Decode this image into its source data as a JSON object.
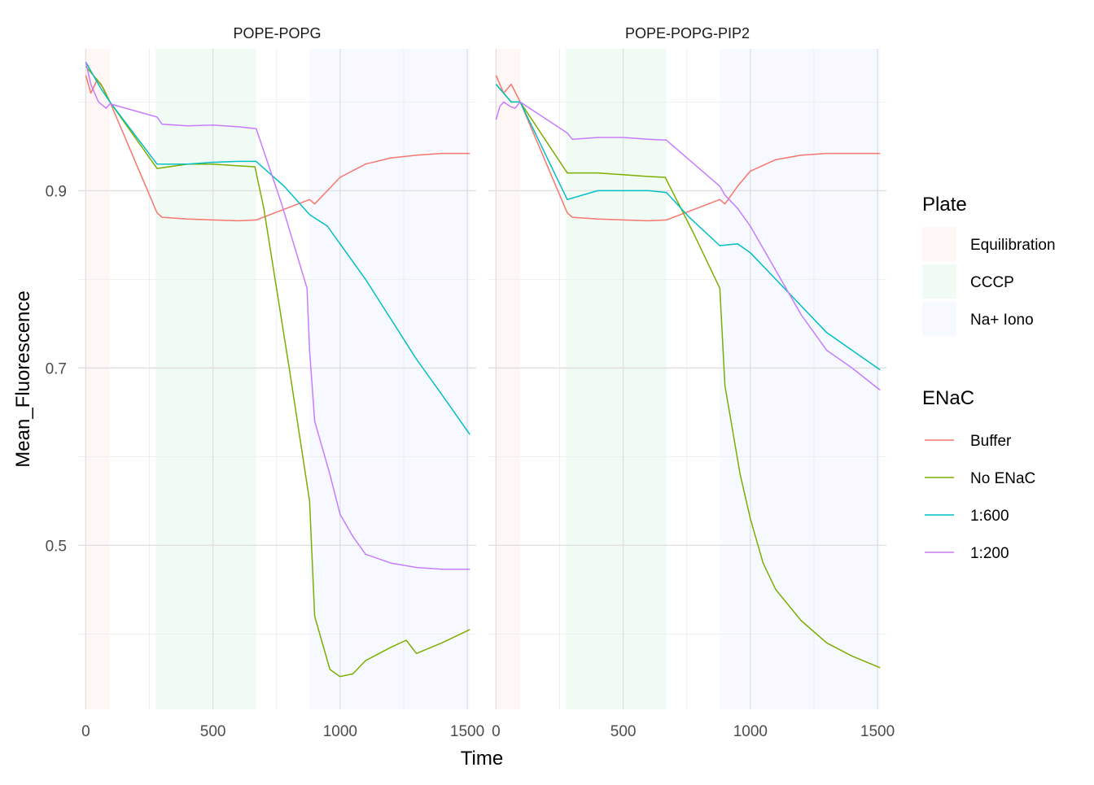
{
  "chart_data": {
    "type": "line",
    "xlabel": "Time",
    "ylabel": "Mean_Fluorescence",
    "xlim": [
      -30,
      1535
    ],
    "ylim": [
      0.315,
      1.06
    ],
    "x_ticks": [
      0,
      500,
      1000,
      1500
    ],
    "y_ticks": [
      0.5,
      0.7,
      0.9
    ],
    "x_tick_labels": [
      "0",
      "500",
      "1000",
      "1500"
    ],
    "y_tick_labels": [
      "0.5",
      "0.7",
      "0.9"
    ],
    "grid": true,
    "facets": [
      "POPE-POPG",
      "POPE-POPG-PIP2"
    ],
    "legend_position": "right",
    "plate_legend": {
      "title": "Plate",
      "entries": [
        {
          "name": "Equilibration",
          "color": "#F8766D",
          "x_range": [
            0,
            95
          ]
        },
        {
          "name": "CCCP",
          "color": "#00BA38",
          "x_range": [
            275,
            670
          ]
        },
        {
          "name": "Na+ Iono",
          "color": "#619CFF",
          "x_range": [
            880,
            1510
          ]
        }
      ]
    },
    "enac_legend": {
      "title": "ENaC",
      "entries": [
        {
          "name": "Buffer",
          "color": "#F8766D"
        },
        {
          "name": "No ENaC",
          "color": "#7CAE00"
        },
        {
          "name": "1:600",
          "color": "#00BFC4"
        },
        {
          "name": "1:200",
          "color": "#C77CFF"
        }
      ]
    },
    "panels": [
      {
        "title": "POPE-POPG",
        "series": [
          {
            "name": "Buffer",
            "x": [
              0,
              20,
              45,
              70,
              95,
              280,
              300,
              400,
              500,
              600,
              670,
              880,
              900,
              950,
              1000,
              1100,
              1200,
              1300,
              1400,
              1510
            ],
            "y": [
              1.03,
              1.01,
              1.025,
              1.015,
              1.0,
              0.875,
              0.87,
              0.868,
              0.867,
              0.866,
              0.867,
              0.89,
              0.885,
              0.9,
              0.915,
              0.93,
              0.937,
              0.94,
              0.942,
              0.942
            ]
          },
          {
            "name": "No ENaC",
            "x": [
              0,
              30,
              60,
              95,
              280,
              400,
              500,
              600,
              665,
              700,
              800,
              880,
              900,
              960,
              1000,
              1050,
              1100,
              1200,
              1260,
              1300,
              1400,
              1510
            ],
            "y": [
              1.04,
              1.03,
              1.02,
              1.0,
              0.925,
              0.93,
              0.93,
              0.928,
              0.927,
              0.88,
              0.7,
              0.55,
              0.42,
              0.36,
              0.352,
              0.355,
              0.37,
              0.385,
              0.393,
              0.378,
              0.39,
              0.405
            ]
          },
          {
            "name": "1:600",
            "x": [
              0,
              30,
              60,
              95,
              280,
              400,
              500,
              600,
              670,
              780,
              880,
              950,
              1000,
              1100,
              1200,
              1300,
              1400,
              1510
            ],
            "y": [
              1.045,
              1.03,
              1.015,
              1.0,
              0.93,
              0.93,
              0.932,
              0.933,
              0.933,
              0.905,
              0.873,
              0.86,
              0.84,
              0.8,
              0.755,
              0.71,
              0.67,
              0.625
            ]
          },
          {
            "name": "1:200",
            "x": [
              0,
              20,
              50,
              80,
              95,
              280,
              300,
              400,
              500,
              600,
              670,
              770,
              870,
              880,
              900,
              960,
              1000,
              1050,
              1100,
              1200,
              1300,
              1400,
              1510
            ],
            "y": [
              1.045,
              1.02,
              1.0,
              0.993,
              0.998,
              0.983,
              0.975,
              0.973,
              0.974,
              0.972,
              0.97,
              0.885,
              0.79,
              0.72,
              0.64,
              0.58,
              0.535,
              0.51,
              0.49,
              0.48,
              0.475,
              0.473,
              0.473
            ]
          }
        ]
      },
      {
        "title": "POPE-POPG-PIP2",
        "series": [
          {
            "name": "Buffer",
            "x": [
              0,
              30,
              60,
              95,
              280,
              300,
              400,
              500,
              600,
              670,
              880,
              900,
              950,
              1000,
              1100,
              1200,
              1300,
              1400,
              1510
            ],
            "y": [
              1.03,
              1.01,
              1.02,
              1.0,
              0.875,
              0.87,
              0.868,
              0.867,
              0.866,
              0.867,
              0.89,
              0.885,
              0.905,
              0.922,
              0.935,
              0.94,
              0.942,
              0.942,
              0.942
            ]
          },
          {
            "name": "No ENaC",
            "x": [
              0,
              30,
              60,
              95,
              280,
              400,
              500,
              600,
              665,
              780,
              880,
              900,
              960,
              1000,
              1050,
              1100,
              1200,
              1300,
              1400,
              1510
            ],
            "y": [
              1.02,
              1.01,
              1.0,
              1.0,
              0.92,
              0.92,
              0.918,
              0.916,
              0.915,
              0.85,
              0.79,
              0.68,
              0.58,
              0.53,
              0.48,
              0.45,
              0.415,
              0.39,
              0.375,
              0.362
            ]
          },
          {
            "name": "1:600",
            "x": [
              0,
              30,
              60,
              95,
              280,
              400,
              500,
              600,
              670,
              760,
              880,
              950,
              1000,
              1100,
              1200,
              1300,
              1400,
              1510
            ],
            "y": [
              1.02,
              1.01,
              1.0,
              1.0,
              0.89,
              0.9,
              0.9,
              0.9,
              0.898,
              0.87,
              0.838,
              0.84,
              0.83,
              0.8,
              0.77,
              0.74,
              0.72,
              0.698
            ]
          },
          {
            "name": "1:200",
            "x": [
              0,
              15,
              30,
              55,
              75,
              95,
              280,
              300,
              400,
              500,
              600,
              670,
              880,
              900,
              950,
              1000,
              1100,
              1200,
              1300,
              1400,
              1510
            ],
            "y": [
              0.98,
              0.995,
              1.0,
              0.995,
              0.993,
              1.0,
              0.965,
              0.958,
              0.96,
              0.96,
              0.958,
              0.957,
              0.905,
              0.895,
              0.88,
              0.86,
              0.81,
              0.76,
              0.72,
              0.7,
              0.675
            ]
          }
        ]
      }
    ]
  }
}
